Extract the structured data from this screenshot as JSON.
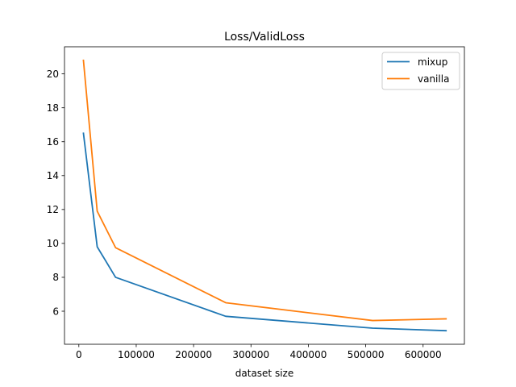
{
  "chart_data": {
    "type": "line",
    "title": "Loss/ValidLoss",
    "xlabel": "dataset size",
    "ylabel": "",
    "xlim": [
      -25000,
      672000
    ],
    "ylim": [
      4.05,
      21.6
    ],
    "xticks": [
      0,
      100000,
      200000,
      300000,
      400000,
      500000,
      600000
    ],
    "xtick_labels": [
      "0",
      "100000",
      "200000",
      "300000",
      "400000",
      "500000",
      "600000"
    ],
    "yticks": [
      6,
      8,
      10,
      12,
      14,
      16,
      18,
      20
    ],
    "ytick_labels": [
      "6",
      "8",
      "10",
      "12",
      "14",
      "16",
      "18",
      "20"
    ],
    "grid": false,
    "legend_position": "top-right",
    "x": [
      8000,
      32000,
      64000,
      256000,
      512000,
      640000
    ],
    "series": [
      {
        "name": "mixup",
        "color": "#1f77b4",
        "values": [
          16.5,
          9.8,
          8.0,
          5.7,
          5.0,
          4.85
        ]
      },
      {
        "name": "vanilla",
        "color": "#ff7f0e",
        "values": [
          20.8,
          11.9,
          9.75,
          6.5,
          5.45,
          5.55
        ]
      }
    ]
  }
}
